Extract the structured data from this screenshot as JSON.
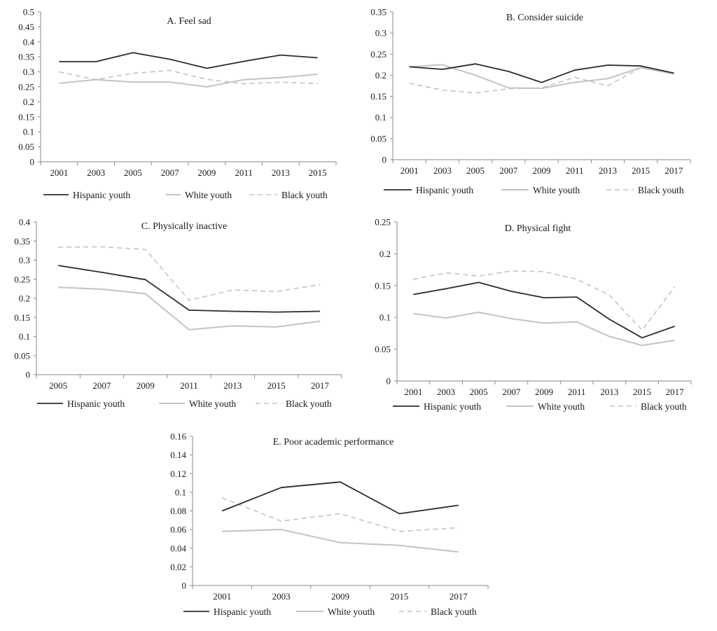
{
  "colors": {
    "hispanic": "#2b2b2b",
    "white": "#c3c3c3",
    "black": "#c3c3c3",
    "axis": "#8a8a8a"
  },
  "chart_data": [
    {
      "type": "line",
      "title": "A. Feel sad",
      "xlabel": "",
      "ylabel": "",
      "x": [
        "2001",
        "2003",
        "2005",
        "2007",
        "2009",
        "2011",
        "2013",
        "2015"
      ],
      "ylim": [
        0,
        0.5
      ],
      "yticks": [
        "0",
        "0.05",
        "0.1",
        "0.15",
        "0.2",
        "0.25",
        "0.3",
        "0.35",
        "0.4",
        "0.45",
        "0.5"
      ],
      "grid": false,
      "legend": "bottom",
      "series": [
        {
          "name": "Hispanic youth",
          "style": "solid-dark",
          "values": [
            0.334,
            0.334,
            0.364,
            0.342,
            0.312,
            0.335,
            0.356,
            0.347
          ]
        },
        {
          "name": "White youth",
          "style": "solid-light",
          "values": [
            0.262,
            0.274,
            0.266,
            0.266,
            0.25,
            0.274,
            0.281,
            0.292
          ]
        },
        {
          "name": "Black youth",
          "style": "dashed-light",
          "values": [
            0.3,
            0.274,
            0.295,
            0.305,
            0.275,
            0.26,
            0.266,
            0.261
          ]
        }
      ]
    },
    {
      "type": "line",
      "title": "B. Consider suicide",
      "xlabel": "",
      "ylabel": "",
      "x": [
        "2001",
        "2003",
        "2005",
        "2007",
        "2009",
        "2011",
        "2013",
        "2015",
        "2017"
      ],
      "ylim": [
        0,
        0.35
      ],
      "yticks": [
        "0",
        "0.05",
        "0.1",
        "0.15",
        "0.2",
        "0.25",
        "0.3",
        "0.35"
      ],
      "grid": false,
      "legend": "bottom",
      "series": [
        {
          "name": "Hispanic youth",
          "style": "solid-dark",
          "values": [
            0.22,
            0.214,
            0.227,
            0.209,
            0.183,
            0.212,
            0.224,
            0.222,
            0.205
          ]
        },
        {
          "name": "White youth",
          "style": "solid-light",
          "values": [
            0.22,
            0.225,
            0.2,
            0.17,
            0.169,
            0.183,
            0.192,
            0.218,
            0.203
          ]
        },
        {
          "name": "Black youth",
          "style": "dashed-light",
          "values": [
            0.181,
            0.165,
            0.158,
            0.168,
            0.17,
            0.195,
            0.175,
            0.218,
            0.205
          ]
        }
      ]
    },
    {
      "type": "line",
      "title": "C. Physically inactive",
      "xlabel": "",
      "ylabel": "",
      "x": [
        "2005",
        "2007",
        "2009",
        "2011",
        "2013",
        "2015",
        "2017"
      ],
      "ylim": [
        0,
        0.4
      ],
      "yticks": [
        "0",
        "0.05",
        "0.1",
        "0.15",
        "0.2",
        "0.25",
        "0.3",
        "0.35",
        "0.4"
      ],
      "grid": false,
      "legend": "bottom",
      "series": [
        {
          "name": "Hispanic youth",
          "style": "solid-dark",
          "values": [
            0.286,
            0.268,
            0.249,
            0.169,
            0.166,
            0.164,
            0.166
          ]
        },
        {
          "name": "White youth",
          "style": "solid-light",
          "values": [
            0.229,
            0.224,
            0.212,
            0.118,
            0.128,
            0.125,
            0.14
          ]
        },
        {
          "name": "Black youth",
          "style": "dashed-light",
          "values": [
            0.334,
            0.335,
            0.328,
            0.195,
            0.222,
            0.218,
            0.236
          ]
        }
      ]
    },
    {
      "type": "line",
      "title": "D. Physical fight",
      "xlabel": "",
      "ylabel": "",
      "x": [
        "2001",
        "2003",
        "2005",
        "2007",
        "2009",
        "2011",
        "2013",
        "2015",
        "2017"
      ],
      "ylim": [
        0,
        0.25
      ],
      "yticks": [
        "0",
        "0.05",
        "0.1",
        "0.15",
        "0.2",
        "0.25"
      ],
      "grid": false,
      "legend": "bottom",
      "series": [
        {
          "name": "Hispanic youth",
          "style": "solid-dark",
          "values": [
            0.136,
            0.145,
            0.155,
            0.141,
            0.131,
            0.132,
            0.097,
            0.068,
            0.086
          ]
        },
        {
          "name": "White youth",
          "style": "solid-light",
          "values": [
            0.106,
            0.099,
            0.108,
            0.098,
            0.091,
            0.093,
            0.07,
            0.056,
            0.064
          ]
        },
        {
          "name": "Black youth",
          "style": "dashed-light",
          "values": [
            0.16,
            0.17,
            0.165,
            0.173,
            0.172,
            0.16,
            0.135,
            0.08,
            0.148
          ]
        }
      ]
    },
    {
      "type": "line",
      "title": "E. Poor academic performance",
      "xlabel": "",
      "ylabel": "",
      "x": [
        "2001",
        "2003",
        "2009",
        "2015",
        "2017"
      ],
      "ylim": [
        0,
        0.16
      ],
      "yticks": [
        "0",
        "0.02",
        "0.04",
        "0.06",
        "0.08",
        "0.1",
        "0.12",
        "0.14",
        "0.16"
      ],
      "grid": false,
      "legend": "bottom",
      "series": [
        {
          "name": "Hispanic youth",
          "style": "solid-dark",
          "values": [
            0.08,
            0.105,
            0.111,
            0.077,
            0.086
          ]
        },
        {
          "name": "White youth",
          "style": "solid-light",
          "values": [
            0.058,
            0.06,
            0.046,
            0.043,
            0.036
          ]
        },
        {
          "name": "Black youth",
          "style": "dashed-light",
          "values": [
            0.094,
            0.069,
            0.077,
            0.058,
            0.062
          ]
        }
      ]
    }
  ]
}
